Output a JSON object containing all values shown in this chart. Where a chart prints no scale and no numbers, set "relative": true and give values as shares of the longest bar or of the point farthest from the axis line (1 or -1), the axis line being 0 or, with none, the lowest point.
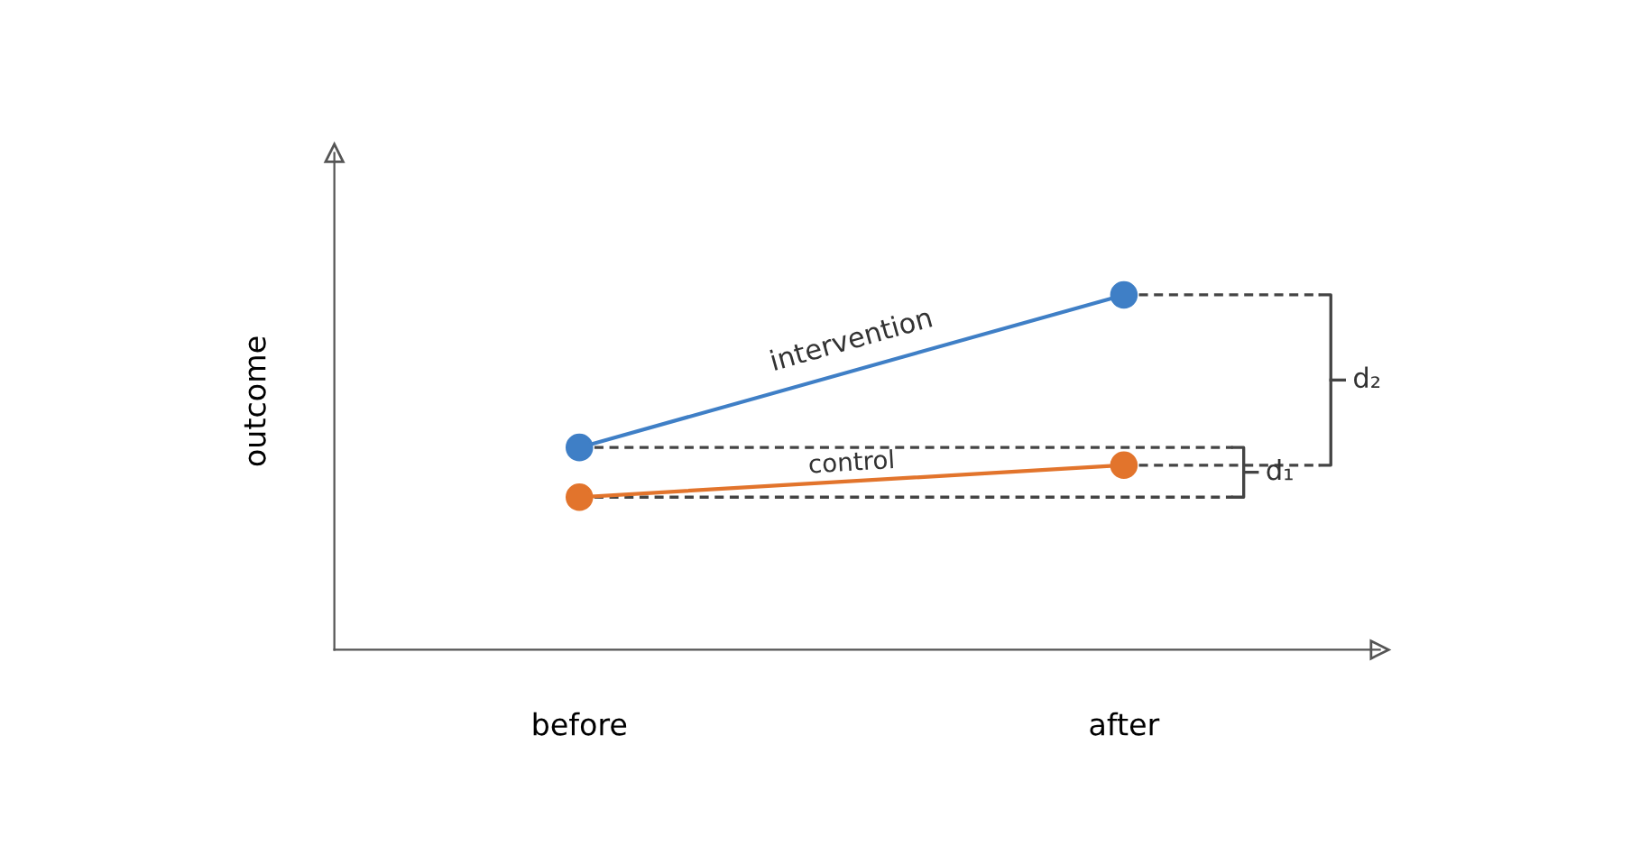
{
  "chart_data": {
    "type": "line",
    "relative": true,
    "ylabel": "outcome",
    "categories": [
      "before",
      "after"
    ],
    "marker": "circle",
    "line_style": "solid",
    "grid": false,
    "legend": false,
    "ref_lines": [
      {
        "axis": "y",
        "value": 0.57,
        "line_style": "dashed"
      },
      {
        "axis": "y",
        "value": 0.43,
        "line_style": "dashed"
      },
      {
        "axis": "y",
        "value": 1.0,
        "line_style": "dashed"
      },
      {
        "axis": "y",
        "value": 0.52,
        "line_style": "dashed"
      }
    ],
    "series": [
      {
        "name": "intervention",
        "color": "#3f7fc6",
        "values": [
          0.57,
          1.0
        ]
      },
      {
        "name": "control",
        "color": "#e2742c",
        "values": [
          0.43,
          0.52
        ]
      }
    ],
    "annotations": [
      "d₁",
      "d₂"
    ]
  }
}
